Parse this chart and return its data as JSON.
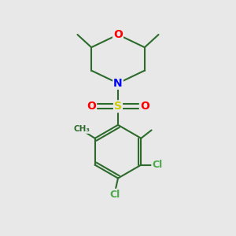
{
  "bg_color": "#e8e8e8",
  "bond_color": "#2d6b2d",
  "bond_width": 1.5,
  "atom_colors": {
    "O": "#ff0000",
    "N": "#0000ff",
    "S": "#cccc00",
    "Cl": "#4aaa4a",
    "C": "#2d6b2d"
  },
  "figsize": [
    3.0,
    3.0
  ],
  "dpi": 100
}
